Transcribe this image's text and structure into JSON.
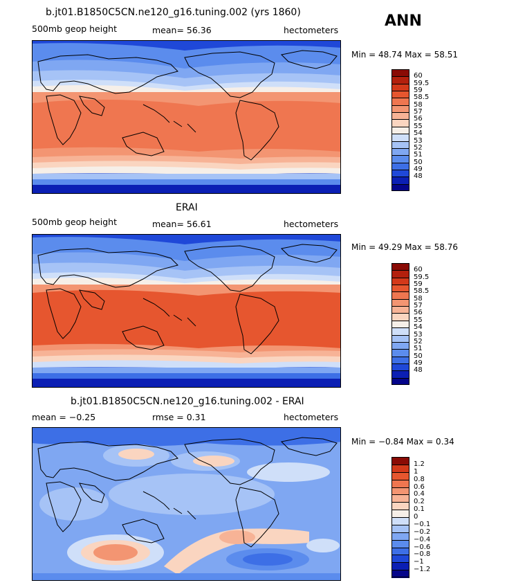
{
  "season": "ANN",
  "colors": {
    "full": [
      "#05058a",
      "#0b1fb4",
      "#1f48d8",
      "#3d6fe6",
      "#5b8ced",
      "#7fa7f2",
      "#a6c3f6",
      "#cfdff9",
      "#f6efe8",
      "#fad5c0",
      "#f7b396",
      "#f39572",
      "#ef7650",
      "#e6562f",
      "#d3391a",
      "#b3200d",
      "#8a0b05"
    ],
    "diff": [
      "#05058a",
      "#0b1fb4",
      "#1f48d8",
      "#3d6fe6",
      "#5b8ced",
      "#7fa7f2",
      "#a6c3f6",
      "#cfdff9",
      "#f6efe8",
      "#fad5c0",
      "#f7b396",
      "#f39572",
      "#ef7650",
      "#e6562f",
      "#d3391a",
      "#8a0b05"
    ]
  },
  "panels": [
    {
      "title": "b.jt01.B1850C5CN.ne120_g16.tuning.002 (yrs 1860)",
      "left_label": "500mb  geop height",
      "center_label": "mean=   56.36",
      "units": "hectometers",
      "minmax": "Min =   48.74  Max =   58.51",
      "colorbar_labels": [
        "60",
        "59.5",
        "59",
        "58.5",
        "58",
        "57",
        "56",
        "55",
        "54",
        "53",
        "52",
        "51",
        "50",
        "49",
        "48"
      ]
    },
    {
      "title": "ERAI",
      "left_label": "500mb  geop height",
      "center_label": "mean=   56.61",
      "units": "hectometers",
      "minmax": "Min =   49.29  Max =   58.76",
      "colorbar_labels": [
        "60",
        "59.5",
        "59",
        "58.5",
        "58",
        "57",
        "56",
        "55",
        "54",
        "53",
        "52",
        "51",
        "50",
        "49",
        "48"
      ]
    },
    {
      "title": "b.jt01.B1850C5CN.ne120_g16.tuning.002 - ERAI",
      "left_label": "mean =   −0.25",
      "center_label": "rmse =    0.31",
      "units": "hectometers",
      "minmax": "Min =   −0.84  Max =    0.34",
      "colorbar_labels": [
        "1.2",
        "1",
        "0.8",
        "0.6",
        "0.4",
        "0.2",
        "0.1",
        "0",
        "−0.1",
        "−0.2",
        "−0.4",
        "−0.6",
        "−0.8",
        "−1",
        "−1.2"
      ]
    }
  ]
}
